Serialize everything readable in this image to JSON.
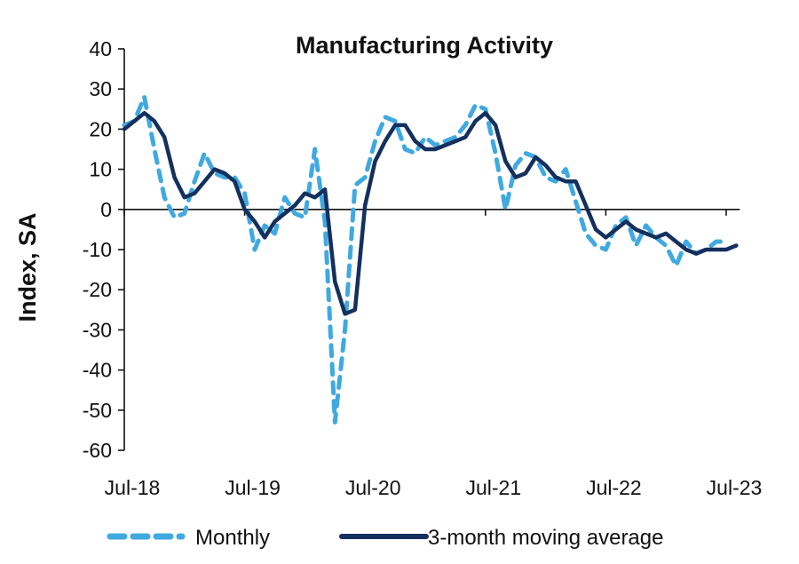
{
  "chart_data": {
    "type": "line",
    "title": "Manufacturing Activity",
    "xlabel": "",
    "ylabel": "Index, SA",
    "ylim": [
      -60,
      40
    ],
    "yticks": [
      40,
      30,
      20,
      10,
      0,
      -10,
      -20,
      -30,
      -40,
      -50,
      -60
    ],
    "xtick_labels": [
      "Jul-18",
      "Jul-19",
      "Jul-20",
      "Jul-21",
      "Jul-22",
      "Jul-23"
    ],
    "xtick_month_index": [
      0,
      12,
      24,
      36,
      48,
      60
    ],
    "x": [
      "Jul-18",
      "Aug-18",
      "Sep-18",
      "Oct-18",
      "Nov-18",
      "Dec-18",
      "Jan-19",
      "Feb-19",
      "Mar-19",
      "Apr-19",
      "May-19",
      "Jun-19",
      "Jul-19",
      "Aug-19",
      "Sep-19",
      "Oct-19",
      "Nov-19",
      "Dec-19",
      "Jan-20",
      "Feb-20",
      "Mar-20",
      "Apr-20",
      "May-20",
      "Jun-20",
      "Jul-20",
      "Aug-20",
      "Sep-20",
      "Oct-20",
      "Nov-20",
      "Dec-20",
      "Jan-21",
      "Feb-21",
      "Mar-21",
      "Apr-21",
      "May-21",
      "Jun-21",
      "Jul-21",
      "Aug-21",
      "Sep-21",
      "Oct-21",
      "Nov-21",
      "Dec-21",
      "Jan-22",
      "Feb-22",
      "Mar-22",
      "Apr-22",
      "May-22",
      "Jun-22",
      "Jul-22",
      "Aug-22",
      "Sep-22",
      "Oct-22",
      "Nov-22",
      "Dec-22",
      "Jan-23",
      "Feb-23",
      "Mar-23",
      "Apr-23",
      "May-23",
      "Jun-23",
      "Jul-23",
      "Aug-23"
    ],
    "grid": false,
    "legend_position": "bottom",
    "series": [
      {
        "name": "Monthly",
        "style": "dashed",
        "color": "#3fa9e0",
        "values": [
          21,
          22,
          28,
          15,
          3,
          -2,
          -1,
          7,
          14,
          9,
          8,
          8,
          4,
          -10,
          -4,
          -6,
          3,
          -1,
          -2,
          15,
          -3,
          -53,
          -30,
          6,
          8,
          17,
          23,
          22,
          15,
          14,
          18,
          16,
          17,
          18,
          21,
          26,
          25,
          14,
          0,
          11,
          14,
          13,
          8,
          7,
          10,
          2,
          -6,
          -9,
          -10,
          -4,
          -2,
          -9,
          -4,
          -7,
          -9,
          -14,
          -8,
          -11,
          -10,
          -8,
          -8,
          null
        ]
      },
      {
        "name": "3-month moving average",
        "style": "solid",
        "color": "#13305e",
        "values": [
          20,
          22,
          24,
          22,
          18,
          8,
          3,
          4,
          7,
          10,
          9,
          7,
          0,
          -3,
          -7,
          -3,
          -1,
          1,
          4,
          3,
          5,
          -18,
          -26,
          -25,
          1,
          12,
          17,
          21,
          21,
          17,
          15,
          15,
          16,
          17,
          18,
          22,
          24,
          21,
          12,
          8,
          9,
          13,
          11,
          8,
          7,
          7,
          1,
          -5,
          -7,
          -5,
          -3,
          -5,
          -6,
          -7,
          -6,
          -8,
          -10,
          -11,
          -10,
          -10,
          -10,
          -9
        ]
      }
    ]
  }
}
